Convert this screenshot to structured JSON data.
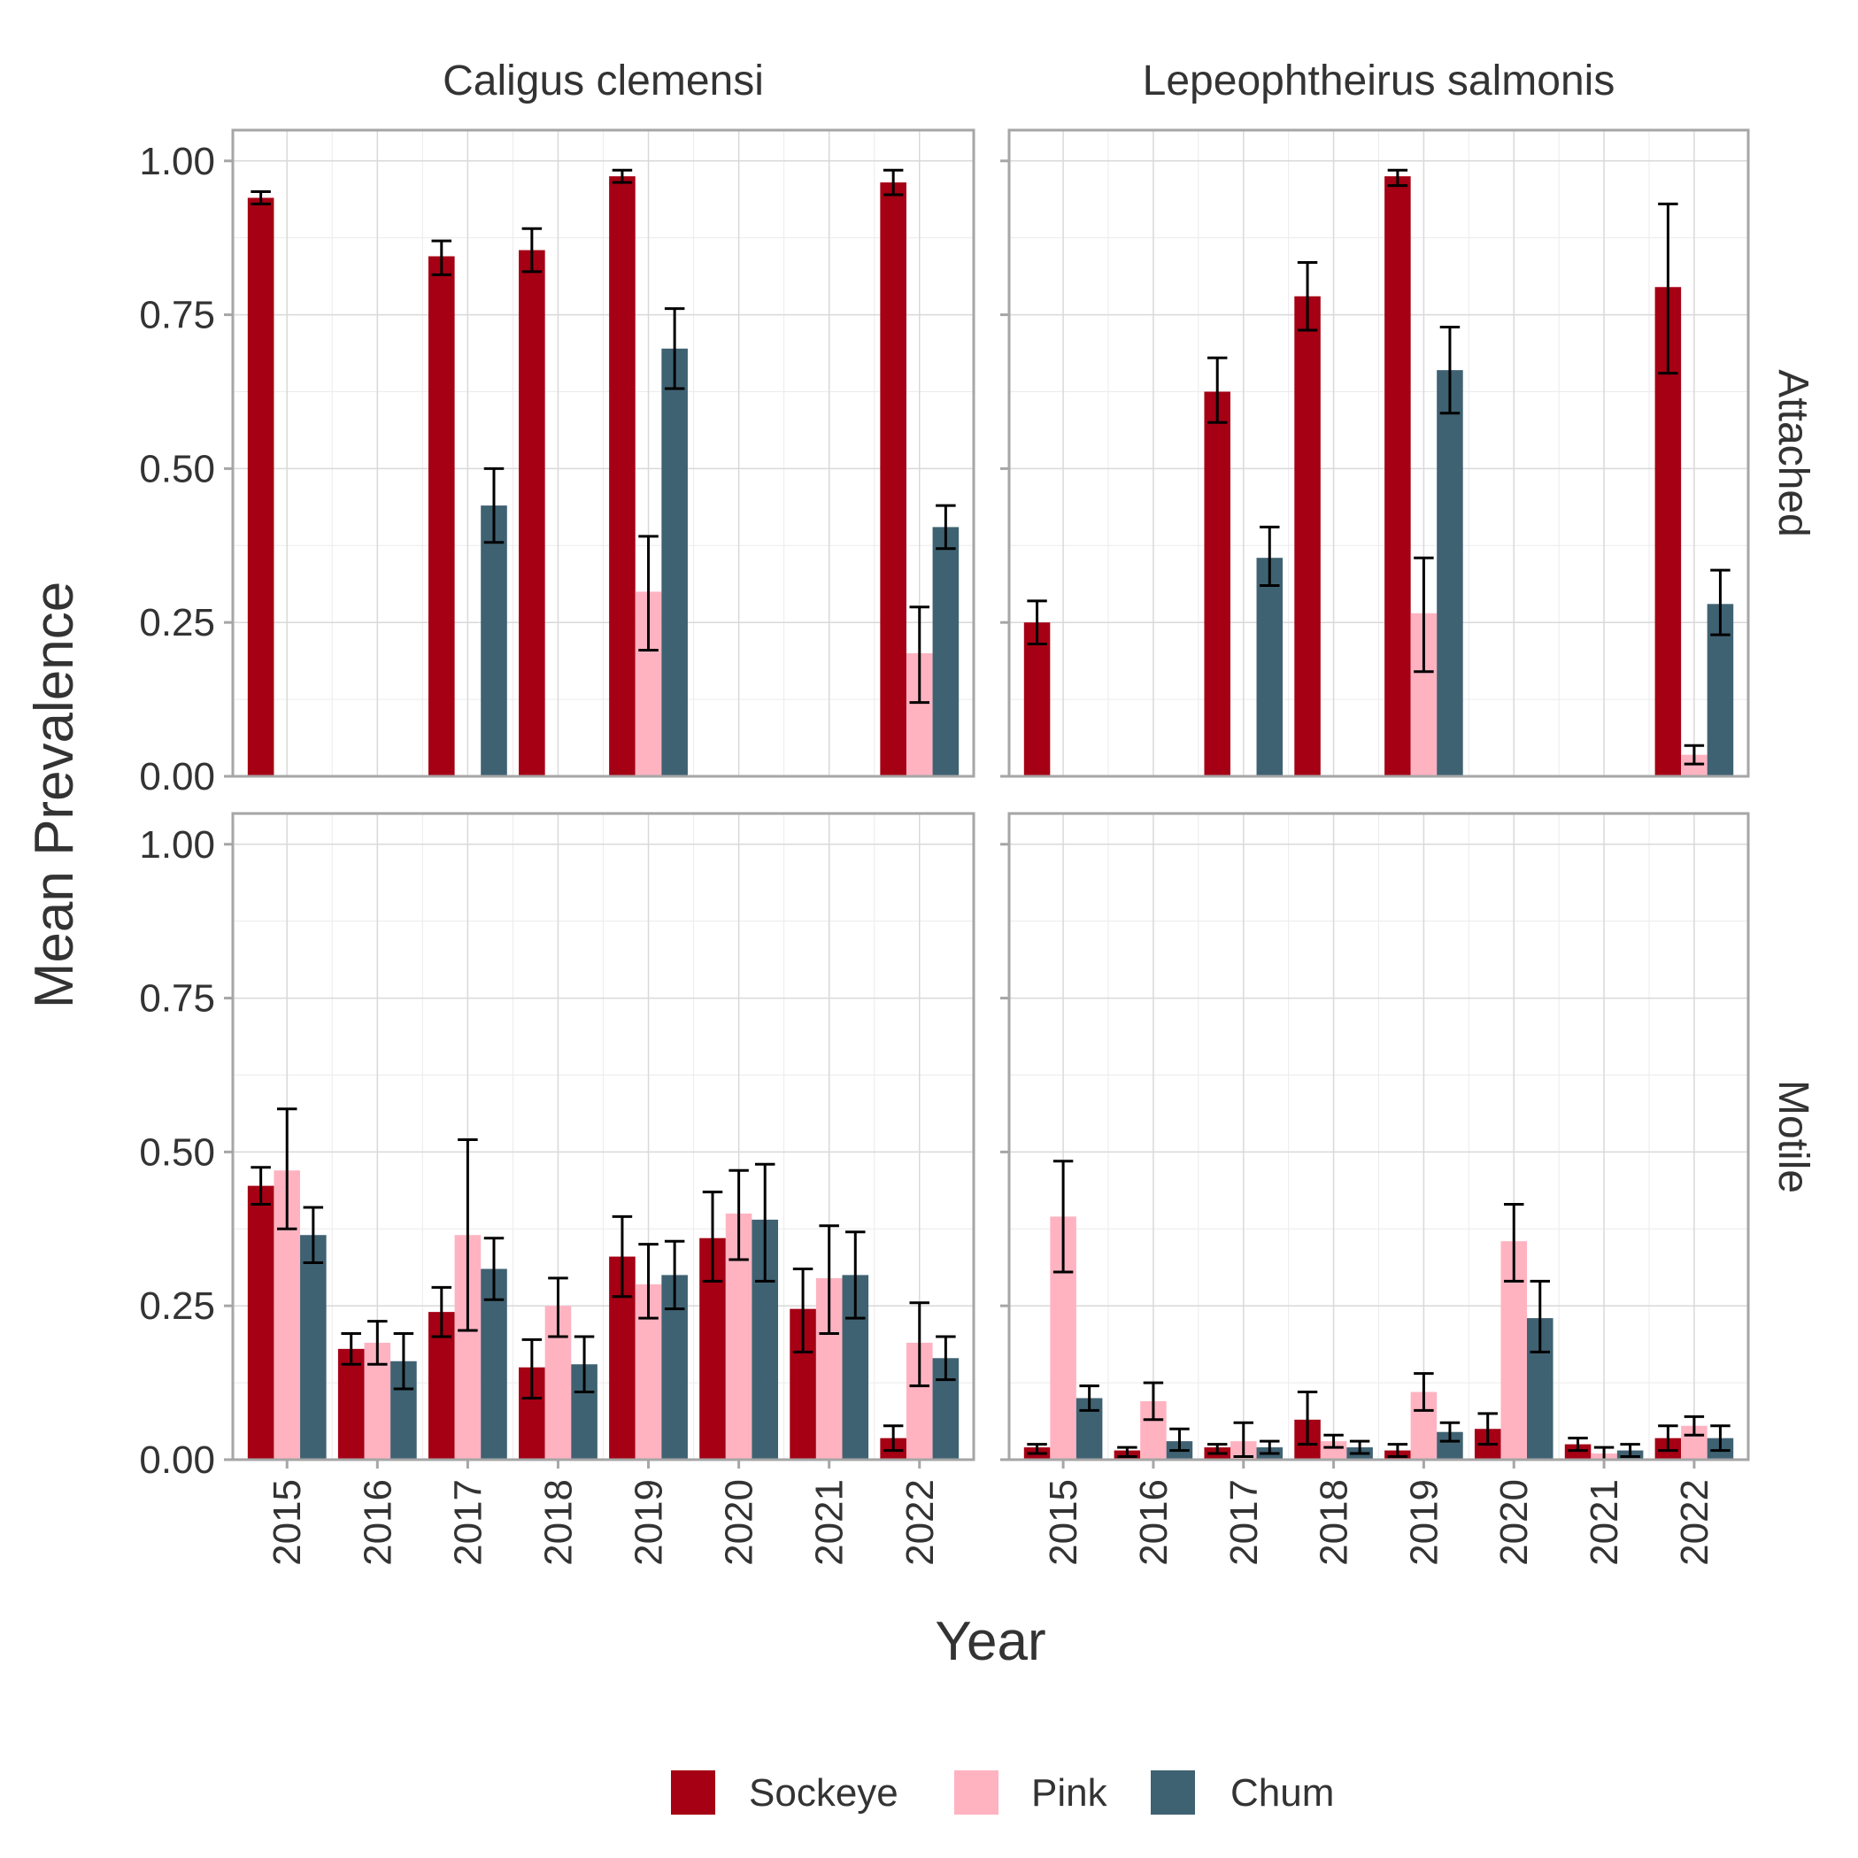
{
  "chart_data": {
    "type": "bar",
    "xlabel": "Year",
    "ylabel": "Mean Prevalence",
    "ylim": [
      0,
      1.05
    ],
    "yticks": [
      "0.00",
      "0.25",
      "0.50",
      "0.75",
      "1.00"
    ],
    "categories": [
      "2015",
      "2016",
      "2017",
      "2018",
      "2019",
      "2020",
      "2021",
      "2022"
    ],
    "grid": true,
    "legend_position": "bottom",
    "column_facets": [
      "Caligus clemensi",
      "Lepeophtheirus salmonis"
    ],
    "row_facets": [
      "Attached",
      "Motile"
    ],
    "series": [
      {
        "name": "Sockeye",
        "color": "#A50014"
      },
      {
        "name": "Pink",
        "color": "#FFB3C1"
      },
      {
        "name": "Chum",
        "color": "#3F6272"
      }
    ],
    "panels": [
      {
        "column": "Caligus clemensi",
        "row": "Attached",
        "values": {
          "Sockeye": [
            0.94,
            null,
            0.845,
            0.855,
            0.975,
            null,
            null,
            0.965
          ],
          "Pink": [
            null,
            null,
            null,
            null,
            0.3,
            null,
            null,
            0.2
          ],
          "Chum": [
            null,
            null,
            0.44,
            null,
            0.695,
            null,
            null,
            0.405
          ]
        },
        "errors": {
          "Sockeye": [
            [
              0.93,
              0.95
            ],
            null,
            [
              0.815,
              0.87
            ],
            [
              0.82,
              0.89
            ],
            [
              0.965,
              0.985
            ],
            null,
            null,
            [
              0.945,
              0.985
            ]
          ],
          "Pink": [
            null,
            null,
            null,
            null,
            [
              0.205,
              0.39
            ],
            null,
            null,
            [
              0.12,
              0.275
            ]
          ],
          "Chum": [
            null,
            null,
            [
              0.38,
              0.5
            ],
            null,
            [
              0.63,
              0.76
            ],
            null,
            null,
            [
              0.37,
              0.44
            ]
          ]
        }
      },
      {
        "column": "Lepeophtheirus salmonis",
        "row": "Attached",
        "values": {
          "Sockeye": [
            0.25,
            null,
            0.625,
            0.78,
            0.975,
            null,
            null,
            0.795
          ],
          "Pink": [
            null,
            null,
            null,
            null,
            0.265,
            null,
            null,
            0.035
          ],
          "Chum": [
            null,
            null,
            0.355,
            null,
            0.66,
            null,
            null,
            0.28
          ]
        },
        "errors": {
          "Sockeye": [
            [
              0.215,
              0.285
            ],
            null,
            [
              0.575,
              0.68
            ],
            [
              0.725,
              0.835
            ],
            [
              0.96,
              0.985
            ],
            null,
            null,
            [
              0.655,
              0.93
            ]
          ],
          "Pink": [
            null,
            null,
            null,
            null,
            [
              0.17,
              0.355
            ],
            null,
            null,
            [
              0.02,
              0.05
            ]
          ],
          "Chum": [
            null,
            null,
            [
              0.31,
              0.405
            ],
            null,
            [
              0.59,
              0.73
            ],
            null,
            null,
            [
              0.23,
              0.335
            ]
          ]
        }
      },
      {
        "column": "Caligus clemensi",
        "row": "Motile",
        "values": {
          "Sockeye": [
            0.445,
            0.18,
            0.24,
            0.15,
            0.33,
            0.36,
            0.245,
            0.035
          ],
          "Pink": [
            0.47,
            0.19,
            0.365,
            0.25,
            0.285,
            0.4,
            0.295,
            0.19
          ],
          "Chum": [
            0.365,
            0.16,
            0.31,
            0.155,
            0.3,
            0.39,
            0.3,
            0.165
          ]
        },
        "errors": {
          "Sockeye": [
            [
              0.415,
              0.475
            ],
            [
              0.155,
              0.205
            ],
            [
              0.2,
              0.28
            ],
            [
              0.1,
              0.195
            ],
            [
              0.265,
              0.395
            ],
            [
              0.29,
              0.435
            ],
            [
              0.175,
              0.31
            ],
            [
              0.015,
              0.055
            ]
          ],
          "Pink": [
            [
              0.375,
              0.57
            ],
            [
              0.155,
              0.225
            ],
            [
              0.21,
              0.52
            ],
            [
              0.2,
              0.295
            ],
            [
              0.23,
              0.35
            ],
            [
              0.325,
              0.47
            ],
            [
              0.205,
              0.38
            ],
            [
              0.12,
              0.255
            ]
          ],
          "Chum": [
            [
              0.32,
              0.41
            ],
            [
              0.115,
              0.205
            ],
            [
              0.26,
              0.36
            ],
            [
              0.11,
              0.2
            ],
            [
              0.245,
              0.355
            ],
            [
              0.29,
              0.48
            ],
            [
              0.23,
              0.37
            ],
            [
              0.13,
              0.2
            ]
          ]
        }
      },
      {
        "column": "Lepeophtheirus salmonis",
        "row": "Motile",
        "values": {
          "Sockeye": [
            0.02,
            0.015,
            0.02,
            0.065,
            0.015,
            0.05,
            0.025,
            0.035
          ],
          "Pink": [
            0.395,
            0.095,
            0.03,
            0.03,
            0.11,
            0.355,
            0.01,
            0.055
          ],
          "Chum": [
            0.1,
            0.03,
            0.02,
            0.02,
            0.045,
            0.23,
            0.015,
            0.035
          ]
        },
        "errors": {
          "Sockeye": [
            [
              0.01,
              0.025
            ],
            [
              0.005,
              0.02
            ],
            [
              0.01,
              0.025
            ],
            [
              0.025,
              0.11
            ],
            [
              0.005,
              0.025
            ],
            [
              0.025,
              0.075
            ],
            [
              0.015,
              0.035
            ],
            [
              0.015,
              0.055
            ]
          ],
          "Pink": [
            [
              0.305,
              0.485
            ],
            [
              0.065,
              0.125
            ],
            [
              0.005,
              0.06
            ],
            [
              0.02,
              0.04
            ],
            [
              0.08,
              0.14
            ],
            [
              0.29,
              0.415
            ],
            [
              0.0,
              0.02
            ],
            [
              0.04,
              0.07
            ]
          ],
          "Chum": [
            [
              0.08,
              0.12
            ],
            [
              0.015,
              0.05
            ],
            [
              0.01,
              0.03
            ],
            [
              0.01,
              0.03
            ],
            [
              0.03,
              0.06
            ],
            [
              0.175,
              0.29
            ],
            [
              0.005,
              0.025
            ],
            [
              0.015,
              0.055
            ]
          ]
        }
      }
    ]
  }
}
